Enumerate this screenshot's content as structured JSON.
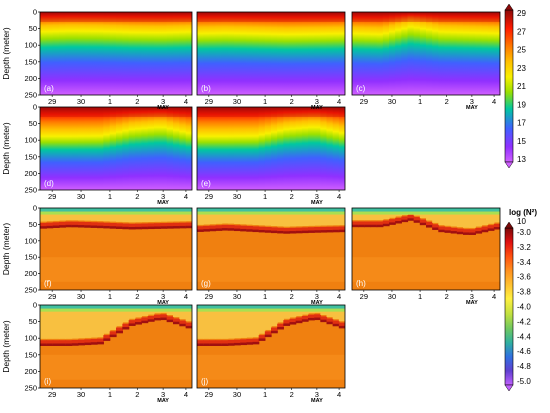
{
  "figure": {
    "y_axis_label": "Depth (meter)",
    "month_label": "MAY",
    "date_ticks": [
      "29",
      "30",
      "1",
      "2",
      "3",
      "4"
    ],
    "depth_ticks": [
      0,
      50,
      100,
      150,
      200,
      250
    ]
  },
  "colorbar_temperature": {
    "labels": [
      "29",
      "27",
      "25",
      "23",
      "21",
      "19",
      "17",
      "15",
      "13"
    ],
    "colors": [
      "#8b0a0a",
      "#ff1a00",
      "#ff7a00",
      "#ffc000",
      "#f8f000",
      "#9ae000",
      "#00c8a0",
      "#4060ff",
      "#9030ff",
      "#d060ff"
    ]
  },
  "colorbar_n2": {
    "title": "log (N²)",
    "top_label": "10",
    "labels": [
      "-3.0",
      "-3.2",
      "-3.4",
      "-3.6",
      "-3.8",
      "-4.0",
      "-4.2",
      "-4.4",
      "-4.6",
      "-4.8",
      "-5.0"
    ],
    "colors": [
      "#7a0a0a",
      "#e01010",
      "#ff5010",
      "#ff9020",
      "#ffc030",
      "#fff040",
      "#c0e040",
      "#70c860",
      "#30b0a0",
      "#3070e0",
      "#6040d0",
      "#c060ff"
    ]
  },
  "chart_data": [
    {
      "panel": "(a)",
      "type": "heatmap",
      "variable": "temperature",
      "x": [
        "29",
        "30",
        "1",
        "2",
        "3",
        "4"
      ],
      "ylim": [
        250,
        0
      ],
      "thermocline_depth_m": [
        85,
        80,
        82,
        88,
        90,
        85
      ],
      "surface_value": 29,
      "bottom_value": 14
    },
    {
      "panel": "(b)",
      "type": "heatmap",
      "variable": "temperature",
      "x": [
        "29",
        "30",
        "1",
        "2",
        "3",
        "4"
      ],
      "ylim": [
        250,
        0
      ],
      "thermocline_depth_m": [
        95,
        92,
        96,
        100,
        98,
        95
      ],
      "surface_value": 29,
      "bottom_value": 14
    },
    {
      "panel": "(c)",
      "type": "heatmap",
      "variable": "temperature",
      "x": [
        "29",
        "30",
        "1",
        "2",
        "3",
        "4"
      ],
      "ylim": [
        250,
        0
      ],
      "thermocline_depth_m": [
        95,
        100,
        55,
        85,
        90,
        95
      ],
      "surface_value": 29,
      "bottom_value": 14
    },
    {
      "panel": "(d)",
      "type": "heatmap",
      "variable": "temperature",
      "x": [
        "29",
        "30",
        "1",
        "2",
        "3",
        "4"
      ],
      "ylim": [
        250,
        0
      ],
      "thermocline_depth_m": [
        140,
        140,
        138,
        100,
        85,
        125
      ],
      "surface_value": 29,
      "bottom_value": 14
    },
    {
      "panel": "(e)",
      "type": "heatmap",
      "variable": "temperature",
      "x": [
        "29",
        "30",
        "1",
        "2",
        "3",
        "4"
      ],
      "ylim": [
        250,
        0
      ],
      "thermocline_depth_m": [
        140,
        140,
        138,
        100,
        85,
        125
      ],
      "surface_value": 29,
      "bottom_value": 14
    },
    {
      "panel": "(f)",
      "type": "heatmap",
      "variable": "log_N2",
      "x": [
        "29",
        "30",
        "1",
        "2",
        "3",
        "4"
      ],
      "ylim": [
        250,
        0
      ],
      "max_layer_depth_m": [
        60,
        55,
        58,
        62,
        60,
        58
      ],
      "background_value": -3.4
    },
    {
      "panel": "(g)",
      "type": "heatmap",
      "variable": "log_N2",
      "x": [
        "29",
        "30",
        "1",
        "2",
        "3",
        "4"
      ],
      "ylim": [
        250,
        0
      ],
      "max_layer_depth_m": [
        70,
        65,
        70,
        75,
        72,
        70
      ],
      "background_value": -3.4
    },
    {
      "panel": "(h)",
      "type": "heatmap",
      "variable": "log_N2",
      "x": [
        "29",
        "30",
        "1",
        "2",
        "3",
        "4"
      ],
      "ylim": [
        250,
        0
      ],
      "max_layer_depth_m": [
        55,
        55,
        35,
        70,
        80,
        60
      ],
      "background_value": -3.4
    },
    {
      "panel": "(i)",
      "type": "heatmap",
      "variable": "log_N2",
      "x": [
        "29",
        "30",
        "1",
        "2",
        "3",
        "4"
      ],
      "ylim": [
        250,
        0
      ],
      "max_layer_depth_m": [
        120,
        120,
        115,
        60,
        40,
        70
      ],
      "background_value": -3.4
    },
    {
      "panel": "(j)",
      "type": "heatmap",
      "variable": "log_N2",
      "x": [
        "29",
        "30",
        "1",
        "2",
        "3",
        "4"
      ],
      "ylim": [
        250,
        0
      ],
      "max_layer_depth_m": [
        120,
        120,
        115,
        60,
        40,
        70
      ],
      "background_value": -3.4
    }
  ]
}
